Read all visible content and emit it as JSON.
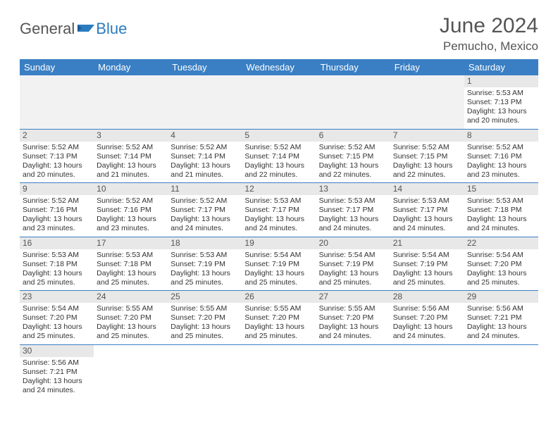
{
  "colors": {
    "header_bg": "#3a7fc4",
    "header_text": "#ffffff",
    "daynum_bg": "#e8e8e8",
    "empty_bg": "#f2f2f2",
    "border": "#3a7fc4",
    "body_text": "#333333",
    "title_text": "#555555",
    "logo_blue": "#2b7bbf"
  },
  "logo": {
    "part1": "General",
    "part2": "Blue"
  },
  "title": "June 2024",
  "location": "Pemucho, Mexico",
  "day_headers": [
    "Sunday",
    "Monday",
    "Tuesday",
    "Wednesday",
    "Thursday",
    "Friday",
    "Saturday"
  ],
  "weeks": [
    [
      null,
      null,
      null,
      null,
      null,
      null,
      {
        "n": "1",
        "sr": "Sunrise: 5:53 AM",
        "ss": "Sunset: 7:13 PM",
        "d1": "Daylight: 13 hours",
        "d2": "and 20 minutes."
      }
    ],
    [
      {
        "n": "2",
        "sr": "Sunrise: 5:52 AM",
        "ss": "Sunset: 7:13 PM",
        "d1": "Daylight: 13 hours",
        "d2": "and 20 minutes."
      },
      {
        "n": "3",
        "sr": "Sunrise: 5:52 AM",
        "ss": "Sunset: 7:14 PM",
        "d1": "Daylight: 13 hours",
        "d2": "and 21 minutes."
      },
      {
        "n": "4",
        "sr": "Sunrise: 5:52 AM",
        "ss": "Sunset: 7:14 PM",
        "d1": "Daylight: 13 hours",
        "d2": "and 21 minutes."
      },
      {
        "n": "5",
        "sr": "Sunrise: 5:52 AM",
        "ss": "Sunset: 7:14 PM",
        "d1": "Daylight: 13 hours",
        "d2": "and 22 minutes."
      },
      {
        "n": "6",
        "sr": "Sunrise: 5:52 AM",
        "ss": "Sunset: 7:15 PM",
        "d1": "Daylight: 13 hours",
        "d2": "and 22 minutes."
      },
      {
        "n": "7",
        "sr": "Sunrise: 5:52 AM",
        "ss": "Sunset: 7:15 PM",
        "d1": "Daylight: 13 hours",
        "d2": "and 22 minutes."
      },
      {
        "n": "8",
        "sr": "Sunrise: 5:52 AM",
        "ss": "Sunset: 7:16 PM",
        "d1": "Daylight: 13 hours",
        "d2": "and 23 minutes."
      }
    ],
    [
      {
        "n": "9",
        "sr": "Sunrise: 5:52 AM",
        "ss": "Sunset: 7:16 PM",
        "d1": "Daylight: 13 hours",
        "d2": "and 23 minutes."
      },
      {
        "n": "10",
        "sr": "Sunrise: 5:52 AM",
        "ss": "Sunset: 7:16 PM",
        "d1": "Daylight: 13 hours",
        "d2": "and 23 minutes."
      },
      {
        "n": "11",
        "sr": "Sunrise: 5:52 AM",
        "ss": "Sunset: 7:17 PM",
        "d1": "Daylight: 13 hours",
        "d2": "and 24 minutes."
      },
      {
        "n": "12",
        "sr": "Sunrise: 5:53 AM",
        "ss": "Sunset: 7:17 PM",
        "d1": "Daylight: 13 hours",
        "d2": "and 24 minutes."
      },
      {
        "n": "13",
        "sr": "Sunrise: 5:53 AM",
        "ss": "Sunset: 7:17 PM",
        "d1": "Daylight: 13 hours",
        "d2": "and 24 minutes."
      },
      {
        "n": "14",
        "sr": "Sunrise: 5:53 AM",
        "ss": "Sunset: 7:17 PM",
        "d1": "Daylight: 13 hours",
        "d2": "and 24 minutes."
      },
      {
        "n": "15",
        "sr": "Sunrise: 5:53 AM",
        "ss": "Sunset: 7:18 PM",
        "d1": "Daylight: 13 hours",
        "d2": "and 24 minutes."
      }
    ],
    [
      {
        "n": "16",
        "sr": "Sunrise: 5:53 AM",
        "ss": "Sunset: 7:18 PM",
        "d1": "Daylight: 13 hours",
        "d2": "and 25 minutes."
      },
      {
        "n": "17",
        "sr": "Sunrise: 5:53 AM",
        "ss": "Sunset: 7:18 PM",
        "d1": "Daylight: 13 hours",
        "d2": "and 25 minutes."
      },
      {
        "n": "18",
        "sr": "Sunrise: 5:53 AM",
        "ss": "Sunset: 7:19 PM",
        "d1": "Daylight: 13 hours",
        "d2": "and 25 minutes."
      },
      {
        "n": "19",
        "sr": "Sunrise: 5:54 AM",
        "ss": "Sunset: 7:19 PM",
        "d1": "Daylight: 13 hours",
        "d2": "and 25 minutes."
      },
      {
        "n": "20",
        "sr": "Sunrise: 5:54 AM",
        "ss": "Sunset: 7:19 PM",
        "d1": "Daylight: 13 hours",
        "d2": "and 25 minutes."
      },
      {
        "n": "21",
        "sr": "Sunrise: 5:54 AM",
        "ss": "Sunset: 7:19 PM",
        "d1": "Daylight: 13 hours",
        "d2": "and 25 minutes."
      },
      {
        "n": "22",
        "sr": "Sunrise: 5:54 AM",
        "ss": "Sunset: 7:20 PM",
        "d1": "Daylight: 13 hours",
        "d2": "and 25 minutes."
      }
    ],
    [
      {
        "n": "23",
        "sr": "Sunrise: 5:54 AM",
        "ss": "Sunset: 7:20 PM",
        "d1": "Daylight: 13 hours",
        "d2": "and 25 minutes."
      },
      {
        "n": "24",
        "sr": "Sunrise: 5:55 AM",
        "ss": "Sunset: 7:20 PM",
        "d1": "Daylight: 13 hours",
        "d2": "and 25 minutes."
      },
      {
        "n": "25",
        "sr": "Sunrise: 5:55 AM",
        "ss": "Sunset: 7:20 PM",
        "d1": "Daylight: 13 hours",
        "d2": "and 25 minutes."
      },
      {
        "n": "26",
        "sr": "Sunrise: 5:55 AM",
        "ss": "Sunset: 7:20 PM",
        "d1": "Daylight: 13 hours",
        "d2": "and 25 minutes."
      },
      {
        "n": "27",
        "sr": "Sunrise: 5:55 AM",
        "ss": "Sunset: 7:20 PM",
        "d1": "Daylight: 13 hours",
        "d2": "and 24 minutes."
      },
      {
        "n": "28",
        "sr": "Sunrise: 5:56 AM",
        "ss": "Sunset: 7:20 PM",
        "d1": "Daylight: 13 hours",
        "d2": "and 24 minutes."
      },
      {
        "n": "29",
        "sr": "Sunrise: 5:56 AM",
        "ss": "Sunset: 7:21 PM",
        "d1": "Daylight: 13 hours",
        "d2": "and 24 minutes."
      }
    ],
    [
      {
        "n": "30",
        "sr": "Sunrise: 5:56 AM",
        "ss": "Sunset: 7:21 PM",
        "d1": "Daylight: 13 hours",
        "d2": "and 24 minutes."
      },
      null,
      null,
      null,
      null,
      null,
      null
    ]
  ]
}
